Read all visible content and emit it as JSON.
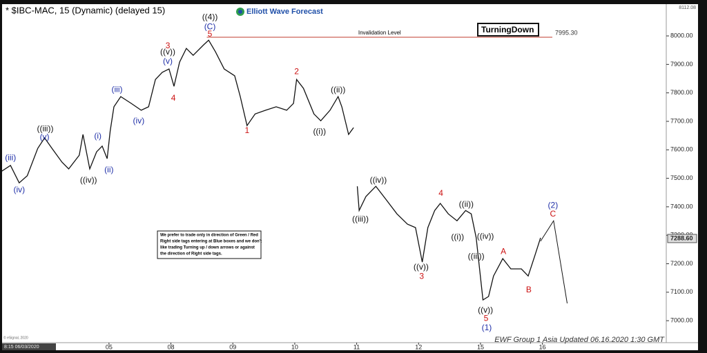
{
  "chart_data": {
    "type": "line",
    "title": "* $IBC-MAC, 15 (Dynamic) (delayed 15)",
    "logo": "Elliott Wave Forecast",
    "tag": "TurningDown",
    "note": [
      "We prefer to trade only in direction of Green / Red",
      "Right side tags entering at Blue boxes and we don't",
      "like trading Turning up / down arrows or against",
      "the direction of Right side tags."
    ],
    "footer": "EWF Group 1 Asia Updated 06.16.2020 1:30 GMT",
    "copyright": "© eSignal, 2020",
    "start_time": "8:15 06/03/2020",
    "top_price": "8112.08",
    "last_price": {
      "value": 7288.6,
      "label": "7288.60"
    },
    "xlim": [
      -1.76,
      9.0
    ],
    "ylim": [
      6935,
      8097
    ],
    "xticks": [
      {
        "value": 0,
        "label": "05"
      },
      {
        "value": 1,
        "label": "08"
      },
      {
        "value": 2,
        "label": "09"
      },
      {
        "value": 3,
        "label": "10"
      },
      {
        "value": 4,
        "label": "11"
      },
      {
        "value": 5,
        "label": "12"
      },
      {
        "value": 6,
        "label": "15"
      },
      {
        "value": 7,
        "label": "16"
      }
    ],
    "yticks": [
      {
        "value": 7000,
        "label": "7000.00"
      },
      {
        "value": 7100,
        "label": "7100.00"
      },
      {
        "value": 7200,
        "label": "7200.00"
      },
      {
        "value": 7300,
        "label": "7300.00"
      },
      {
        "value": 7400,
        "label": "7400.00"
      },
      {
        "value": 7500,
        "label": "7500.00"
      },
      {
        "value": 7600,
        "label": "7600.00"
      },
      {
        "value": 7700,
        "label": "7700.00"
      },
      {
        "value": 7800,
        "label": "7800.00"
      },
      {
        "value": 7900,
        "label": "7900.00"
      },
      {
        "value": 8000,
        "label": "8000.00"
      }
    ],
    "series": [
      {
        "color": "#111111",
        "x": [
          -1.76,
          -1.59,
          -1.45,
          -1.32,
          -1.15,
          -1.04,
          -0.92,
          -0.76,
          -0.65,
          -0.48,
          -0.42,
          -0.31,
          -0.2,
          -0.11,
          -0.03,
          0.02,
          0.08,
          0.19,
          0.36,
          0.52,
          0.64,
          0.75,
          0.86,
          0.97,
          1.05,
          1.14,
          1.25,
          1.36,
          1.53,
          1.61,
          1.72,
          1.86,
          2.03,
          2.12,
          2.23,
          2.36,
          2.53,
          2.7,
          2.87,
          2.98,
          3.03,
          3.14,
          3.31,
          3.42,
          3.57,
          3.7,
          3.76,
          3.87,
          3.95,
          3.99,
          4.01,
          4.04,
          4.15,
          4.31,
          4.48,
          4.65,
          4.82,
          4.95,
          5.06,
          5.15,
          5.26,
          5.35,
          5.48,
          5.62,
          5.76,
          5.85,
          5.93,
          6.04,
          6.13,
          6.21,
          6.36,
          6.49,
          6.66,
          6.77,
          6.88,
          6.97
        ],
        "values": [
          7521,
          7545,
          7484,
          7509,
          7605,
          7642,
          7605,
          7557,
          7533,
          7581,
          7654,
          7533,
          7593,
          7613,
          7569,
          7666,
          7751,
          7787,
          7763,
          7739,
          7751,
          7847,
          7872,
          7884,
          7823,
          7908,
          7956,
          7932,
          7969,
          7985,
          7944,
          7884,
          7860,
          7787,
          7685,
          7726,
          7739,
          7751,
          7739,
          7763,
          7847,
          7816,
          7726,
          7702,
          7739,
          7787,
          7751,
          7654,
          7678,
          null,
          7472,
          7387,
          7436,
          7472,
          7424,
          7375,
          7339,
          7327,
          7206,
          7327,
          7387,
          7412,
          7375,
          7351,
          7387,
          7375,
          7291,
          7073,
          7085,
          7157,
          7218,
          7182,
          7182,
          7157,
          7230,
          7291
        ]
      }
    ],
    "projection": {
      "color": "#111111",
      "x": [
        6.97,
        7.18,
        7.4
      ],
      "values": [
        7279,
        7351,
        7061
      ]
    },
    "invalidation": {
      "label": "Invalidation Level",
      "value": 7995.3,
      "value_label": "7995.30",
      "x": [
        1.58,
        7.16
      ],
      "color": "#c0392b"
    },
    "annotations": [
      {
        "text": "(iii)",
        "color": "#1f2fa8",
        "x": -1.59,
        "y": 7571
      },
      {
        "text": "(iv)",
        "color": "#1f2fa8",
        "x": -1.45,
        "y": 7458
      },
      {
        "text": "(v)",
        "color": "#1f2fa8",
        "x": -1.04,
        "y": 7644
      },
      {
        "text": "(i)",
        "color": "#1f2fa8",
        "x": -0.18,
        "y": 7647
      },
      {
        "text": "(ii)",
        "color": "#1f2fa8",
        "x": 0.0,
        "y": 7528
      },
      {
        "text": "(iii)",
        "color": "#1f2fa8",
        "x": 0.13,
        "y": 7811
      },
      {
        "text": "(iv)",
        "color": "#1f2fa8",
        "x": 0.48,
        "y": 7700
      },
      {
        "text": "(v)",
        "color": "#1f2fa8",
        "x": 0.95,
        "y": 7910
      },
      {
        "text": "(C)",
        "color": "#1f2fa8",
        "x": 1.63,
        "y": 8031
      },
      {
        "text": "(2)",
        "color": "#1f2fa8",
        "x": 7.17,
        "y": 7404
      },
      {
        "text": "(1)",
        "color": "#1f2fa8",
        "x": 6.1,
        "y": 6974
      },
      {
        "text": "((iii))",
        "color": "#111111",
        "x": -1.03,
        "y": 7673
      },
      {
        "text": "((iv))",
        "color": "#111111",
        "x": -0.33,
        "y": 7492
      },
      {
        "text": "((v))",
        "color": "#111111",
        "x": 0.95,
        "y": 7942
      },
      {
        "text": "((4))",
        "color": "#111111",
        "x": 1.63,
        "y": 8065
      },
      {
        "text": "((ii))",
        "color": "#111111",
        "x": 3.7,
        "y": 7809
      },
      {
        "text": "((i))",
        "color": "#111111",
        "x": 3.4,
        "y": 7663
      },
      {
        "text": "((iv))",
        "color": "#111111",
        "x": 4.35,
        "y": 7492
      },
      {
        "text": "((iii))",
        "color": "#111111",
        "x": 4.06,
        "y": 7356
      },
      {
        "text": "((v))",
        "color": "#111111",
        "x": 5.04,
        "y": 7187
      },
      {
        "text": "((ii))",
        "color": "#111111",
        "x": 5.77,
        "y": 7407
      },
      {
        "text": "((i))",
        "color": "#111111",
        "x": 5.63,
        "y": 7293
      },
      {
        "text": "((iv))",
        "color": "#111111",
        "x": 6.08,
        "y": 7295
      },
      {
        "text": "((iii))",
        "color": "#111111",
        "x": 5.93,
        "y": 7225
      },
      {
        "text": "((v))",
        "color": "#111111",
        "x": 6.08,
        "y": 7036
      },
      {
        "text": "3",
        "color": "#cc1111",
        "x": 0.95,
        "y": 7964
      },
      {
        "text": "4",
        "color": "#cc1111",
        "x": 1.04,
        "y": 7780
      },
      {
        "text": "5",
        "color": "#cc1111",
        "x": 1.63,
        "y": 8005
      },
      {
        "text": "1",
        "color": "#cc1111",
        "x": 2.23,
        "y": 7666
      },
      {
        "text": "2",
        "color": "#cc1111",
        "x": 3.03,
        "y": 7874
      },
      {
        "text": "4",
        "color": "#cc1111",
        "x": 5.36,
        "y": 7446
      },
      {
        "text": "3",
        "color": "#cc1111",
        "x": 5.05,
        "y": 7155
      },
      {
        "text": "A",
        "color": "#cc1111",
        "x": 6.37,
        "y": 7242
      },
      {
        "text": "B",
        "color": "#cc1111",
        "x": 6.78,
        "y": 7107
      },
      {
        "text": "C",
        "color": "#cc1111",
        "x": 7.17,
        "y": 7373
      },
      {
        "text": "5",
        "color": "#cc1111",
        "x": 6.09,
        "y": 7007
      }
    ]
  }
}
